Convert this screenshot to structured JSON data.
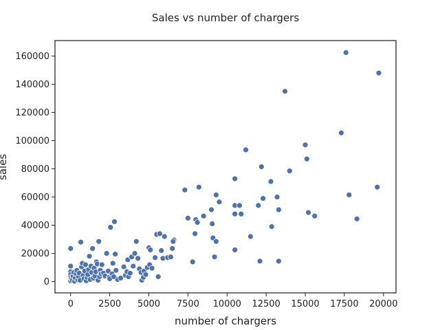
{
  "chart_data": {
    "type": "scatter",
    "title": "Sales vs number of chargers",
    "xlabel": "number of chargers",
    "ylabel": "sales",
    "xlim": [
      -1000,
      20800
    ],
    "ylim": [
      -8000,
      171000
    ],
    "xticks": [
      0,
      2500,
      5000,
      7500,
      10000,
      12500,
      15000,
      17500,
      20000
    ],
    "yticks": [
      0,
      20000,
      40000,
      60000,
      80000,
      100000,
      120000,
      140000,
      160000
    ],
    "grid": false,
    "point_color": "#4c72b0",
    "points": [
      [
        0,
        23500
      ],
      [
        0,
        11000
      ],
      [
        0,
        7000
      ],
      [
        0,
        5000
      ],
      [
        0,
        3000
      ],
      [
        0,
        1500
      ],
      [
        0,
        500
      ],
      [
        50,
        2000
      ],
      [
        100,
        1000
      ],
      [
        150,
        4000
      ],
      [
        200,
        6500
      ],
      [
        250,
        300
      ],
      [
        300,
        2500
      ],
      [
        350,
        5500
      ],
      [
        400,
        8000
      ],
      [
        450,
        1200
      ],
      [
        500,
        3500
      ],
      [
        550,
        6000
      ],
      [
        600,
        900
      ],
      [
        650,
        28000
      ],
      [
        700,
        10500
      ],
      [
        750,
        13000
      ],
      [
        800,
        4500
      ],
      [
        850,
        2000
      ],
      [
        900,
        7500
      ],
      [
        950,
        12000
      ],
      [
        1000,
        600
      ],
      [
        1050,
        3000
      ],
      [
        1100,
        5000
      ],
      [
        1150,
        8500
      ],
      [
        1200,
        18000
      ],
      [
        1250,
        1500
      ],
      [
        1300,
        11000
      ],
      [
        1350,
        6500
      ],
      [
        1400,
        23500
      ],
      [
        1450,
        2500
      ],
      [
        1500,
        9500
      ],
      [
        1550,
        4000
      ],
      [
        1600,
        7000
      ],
      [
        1650,
        14000
      ],
      [
        1700,
        12500
      ],
      [
        1750,
        1000
      ],
      [
        1800,
        28500
      ],
      [
        1850,
        3500
      ],
      [
        1900,
        8000
      ],
      [
        1950,
        5500
      ],
      [
        2000,
        12000
      ],
      [
        2100,
        6000
      ],
      [
        2200,
        4000
      ],
      [
        2300,
        20000
      ],
      [
        2400,
        7500
      ],
      [
        2450,
        3000
      ],
      [
        2500,
        2000
      ],
      [
        2550,
        38500
      ],
      [
        2650,
        5500
      ],
      [
        2700,
        13000
      ],
      [
        2800,
        42500
      ],
      [
        2850,
        19500
      ],
      [
        2900,
        8000
      ],
      [
        3000,
        1500
      ],
      [
        2750,
        3500
      ],
      [
        3200,
        2500
      ],
      [
        3400,
        10500
      ],
      [
        3500,
        4500
      ],
      [
        3600,
        7000
      ],
      [
        3650,
        15500
      ],
      [
        3700,
        3500
      ],
      [
        3800,
        6000
      ],
      [
        3900,
        17500
      ],
      [
        4000,
        11000
      ],
      [
        4100,
        20000
      ],
      [
        4200,
        28500
      ],
      [
        4300,
        16500
      ],
      [
        4400,
        9000
      ],
      [
        4500,
        6500
      ],
      [
        4550,
        1000
      ],
      [
        4650,
        3000
      ],
      [
        4700,
        7500
      ],
      [
        4800,
        5000
      ],
      [
        4900,
        10000
      ],
      [
        5000,
        24000
      ],
      [
        5050,
        12000
      ],
      [
        5100,
        22500
      ],
      [
        5200,
        9500
      ],
      [
        5400,
        17000
      ],
      [
        5500,
        33500
      ],
      [
        5600,
        3500
      ],
      [
        5700,
        34000
      ],
      [
        5800,
        22000
      ],
      [
        5900,
        16500
      ],
      [
        6000,
        32000
      ],
      [
        6200,
        17000
      ],
      [
        6400,
        17500
      ],
      [
        6500,
        23500
      ],
      [
        6600,
        29500
      ],
      [
        6550,
        28500
      ],
      [
        7300,
        65000
      ],
      [
        7500,
        45000
      ],
      [
        7800,
        14000
      ],
      [
        7950,
        34000
      ],
      [
        8000,
        44000
      ],
      [
        8100,
        42000
      ],
      [
        8200,
        67000
      ],
      [
        8500,
        46500
      ],
      [
        9000,
        51000
      ],
      [
        9050,
        41000
      ],
      [
        9100,
        31000
      ],
      [
        9200,
        17500
      ],
      [
        9300,
        61500
      ],
      [
        9300,
        28500
      ],
      [
        9500,
        56500
      ],
      [
        10500,
        73000
      ],
      [
        10500,
        54000
      ],
      [
        10500,
        48000
      ],
      [
        10500,
        22500
      ],
      [
        10800,
        54000
      ],
      [
        10900,
        48000
      ],
      [
        11200,
        93500
      ],
      [
        11500,
        32000
      ],
      [
        12000,
        54000
      ],
      [
        12100,
        14500
      ],
      [
        12200,
        81500
      ],
      [
        12300,
        59000
      ],
      [
        12800,
        71000
      ],
      [
        12850,
        39000
      ],
      [
        13200,
        60000
      ],
      [
        13300,
        51000
      ],
      [
        13300,
        14500
      ],
      [
        13700,
        135000
      ],
      [
        14000,
        78500
      ],
      [
        15000,
        97000
      ],
      [
        15100,
        87000
      ],
      [
        15200,
        49000
      ],
      [
        15600,
        46500
      ],
      [
        17300,
        105500
      ],
      [
        17600,
        162500
      ],
      [
        17800,
        61500
      ],
      [
        18300,
        44500
      ],
      [
        19600,
        67000
      ],
      [
        19700,
        148000
      ]
    ]
  }
}
